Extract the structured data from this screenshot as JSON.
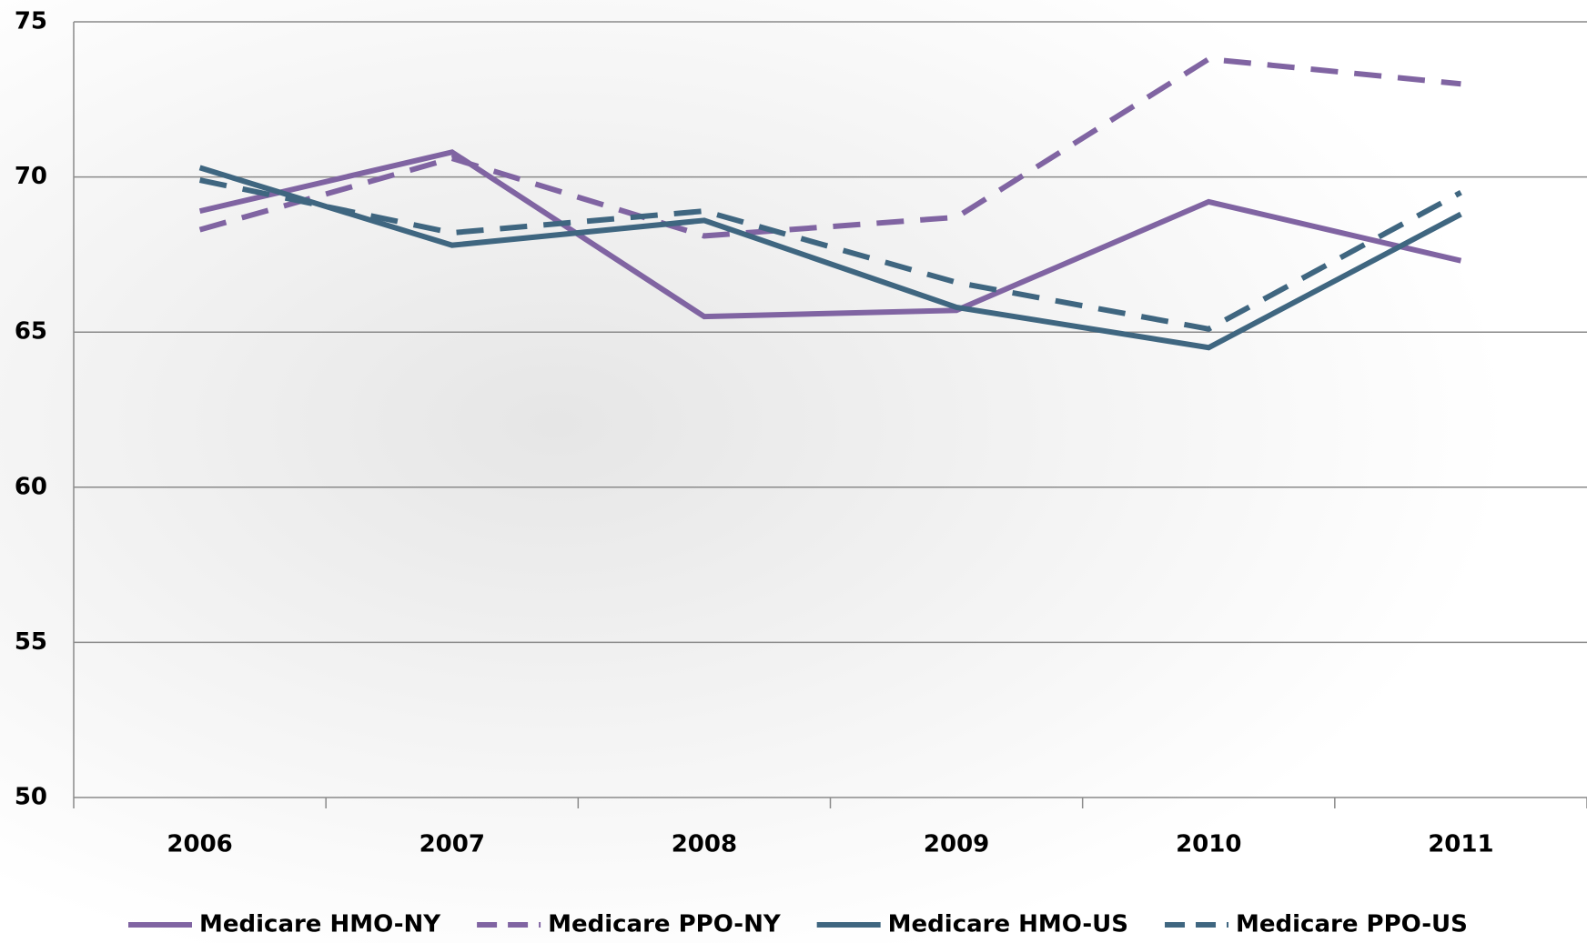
{
  "chart_data": {
    "type": "line",
    "categories": [
      "2006",
      "2007",
      "2008",
      "2009",
      "2010",
      "2011"
    ],
    "series": [
      {
        "name": "Medicare HMO-NY",
        "color": "#8064a2",
        "dashed": false,
        "values": [
          68.9,
          70.8,
          65.5,
          65.7,
          69.2,
          67.3
        ]
      },
      {
        "name": "Medicare PPO-NY",
        "color": "#8064a2",
        "dashed": true,
        "values": [
          68.3,
          70.6,
          68.1,
          68.7,
          73.8,
          73.0
        ]
      },
      {
        "name": "Medicare HMO-US",
        "color": "#3f6680",
        "dashed": false,
        "values": [
          70.3,
          67.8,
          68.6,
          65.8,
          64.5,
          68.8
        ]
      },
      {
        "name": "Medicare PPO-US",
        "color": "#3f6680",
        "dashed": true,
        "values": [
          69.9,
          68.2,
          68.9,
          66.6,
          65.1,
          69.5
        ]
      }
    ],
    "ylim": [
      50,
      75
    ],
    "yticks": [
      50,
      55,
      60,
      65,
      70,
      75
    ],
    "grid": true,
    "legend": "bottom"
  }
}
